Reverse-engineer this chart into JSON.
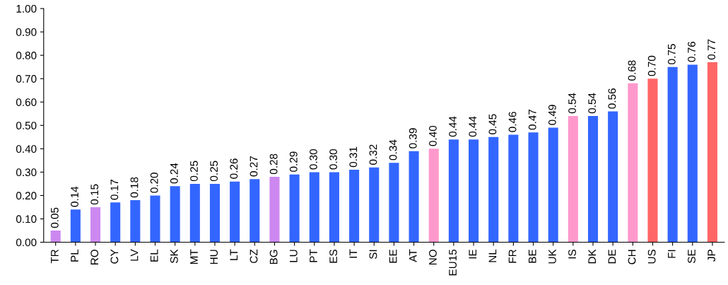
{
  "chart_data": {
    "type": "bar",
    "categories": [
      "TR",
      "PL",
      "RO",
      "CY",
      "LV",
      "EL",
      "SK",
      "MT",
      "HU",
      "LT",
      "CZ",
      "BG",
      "LU",
      "PT",
      "ES",
      "IT",
      "SI",
      "EE",
      "AT",
      "NO",
      "EU15",
      "IE",
      "NL",
      "FR",
      "BE",
      "UK",
      "IS",
      "DK",
      "DE",
      "CH",
      "US",
      "FI",
      "SE",
      "JP"
    ],
    "values": [
      0.05,
      0.14,
      0.15,
      0.17,
      0.18,
      0.2,
      0.24,
      0.25,
      0.25,
      0.26,
      0.27,
      0.28,
      0.29,
      0.3,
      0.3,
      0.31,
      0.32,
      0.34,
      0.39,
      0.4,
      0.44,
      0.44,
      0.45,
      0.46,
      0.47,
      0.49,
      0.54,
      0.54,
      0.56,
      0.68,
      0.7,
      0.75,
      0.76,
      0.77
    ],
    "value_labels": [
      "0.05",
      "0.14",
      "0.15",
      "0.17",
      "0.18",
      "0.20",
      "0.24",
      "0.25",
      "0.25",
      "0.26",
      "0.27",
      "0.28",
      "0.29",
      "0.30",
      "0.30",
      "0.31",
      "0.32",
      "0.34",
      "0.39",
      "0.40",
      "0.44",
      "0.44",
      "0.45",
      "0.46",
      "0.47",
      "0.49",
      "0.54",
      "0.54",
      "0.56",
      "0.68",
      "0.70",
      "0.75",
      "0.76",
      "0.77"
    ],
    "colors": [
      "#cc88f0",
      "#3366ff",
      "#cc88f0",
      "#3366ff",
      "#3366ff",
      "#3366ff",
      "#3366ff",
      "#3366ff",
      "#3366ff",
      "#3366ff",
      "#3366ff",
      "#cc88f0",
      "#3366ff",
      "#3366ff",
      "#3366ff",
      "#3366ff",
      "#3366ff",
      "#3366ff",
      "#3366ff",
      "#ff99cc",
      "#3366ff",
      "#3366ff",
      "#3366ff",
      "#3366ff",
      "#3366ff",
      "#3366ff",
      "#ff99cc",
      "#3366ff",
      "#3366ff",
      "#ff99cc",
      "#ff6666",
      "#3366ff",
      "#3366ff",
      "#ff6666"
    ],
    "ylim": [
      0,
      1
    ],
    "yticks": [
      {
        "value": 0,
        "label": "0.00"
      },
      {
        "value": 0.1,
        "label": "0.10"
      },
      {
        "value": 0.2,
        "label": "0.20"
      },
      {
        "value": 0.3,
        "label": "0.30"
      },
      {
        "value": 0.4,
        "label": "0.40"
      },
      {
        "value": 0.5,
        "label": "0.50"
      },
      {
        "value": 0.6,
        "label": "0.60"
      },
      {
        "value": 0.7,
        "label": "0.70"
      },
      {
        "value": 0.8,
        "label": "0.80"
      },
      {
        "value": 0.9,
        "label": "0.90"
      },
      {
        "value": 1,
        "label": "1.00"
      }
    ],
    "grid": false
  }
}
